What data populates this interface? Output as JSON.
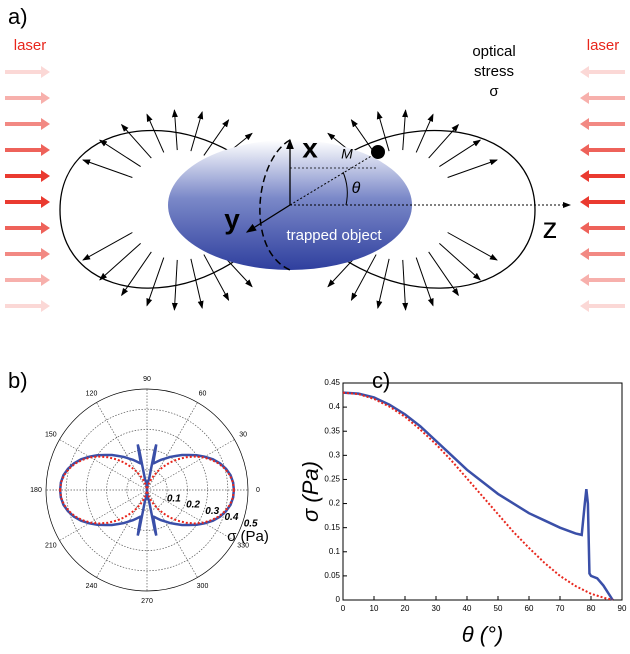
{
  "figure_a": {
    "panel_label": "a)",
    "laser_left": "laser",
    "laser_right": "laser",
    "stress_label": [
      "optical",
      "stress",
      "σ"
    ],
    "axis_x": "x",
    "axis_y": "y",
    "axis_z": "z",
    "point": "M",
    "angle": "θ",
    "object": "trapped object"
  },
  "chart_data": [
    {
      "type": "polar",
      "panel_label": "b)",
      "rlim": [
        0,
        0.5
      ],
      "rticks": [
        0.1,
        0.2,
        0.3,
        0.4,
        0.5
      ],
      "thetaticks": [
        0,
        30,
        60,
        90,
        120,
        150,
        180,
        210,
        240,
        270,
        300,
        330
      ],
      "r_label": "σ (Pa)",
      "grid": true
    },
    {
      "type": "line",
      "panel_label": "c)",
      "xlabel": "θ (°)",
      "ylabel": "σ (Pa)",
      "xlim": [
        0,
        90
      ],
      "ylim": [
        0,
        0.45
      ],
      "xticks": [
        0,
        10,
        20,
        30,
        40,
        50,
        60,
        70,
        80,
        90
      ],
      "yticks": [
        0,
        0.05,
        0.1,
        0.15,
        0.2,
        0.25,
        0.3,
        0.35,
        0.4,
        0.45
      ],
      "series": [
        {
          "color": "#3a4fa8",
          "style": "solid",
          "x": [
            0,
            5,
            10,
            15,
            20,
            25,
            30,
            35,
            40,
            45,
            50,
            55,
            60,
            65,
            70,
            75,
            77,
            78,
            78.5,
            79,
            79.5,
            80,
            82,
            84,
            86,
            87
          ],
          "values": [
            0.43,
            0.428,
            0.42,
            0.405,
            0.385,
            0.36,
            0.33,
            0.3,
            0.27,
            0.245,
            0.22,
            0.2,
            0.18,
            0.165,
            0.15,
            0.138,
            0.135,
            0.2,
            0.23,
            0.2,
            0.055,
            0.05,
            0.045,
            0.03,
            0.01,
            0
          ]
        },
        {
          "color": "#e8261c",
          "style": "dotted",
          "x": [
            0,
            5,
            10,
            15,
            20,
            25,
            30,
            35,
            40,
            45,
            50,
            55,
            60,
            65,
            70,
            75,
            80,
            85,
            87
          ],
          "values": [
            0.43,
            0.427,
            0.417,
            0.401,
            0.38,
            0.353,
            0.323,
            0.289,
            0.252,
            0.215,
            0.178,
            0.141,
            0.108,
            0.077,
            0.05,
            0.029,
            0.013,
            0.003,
            0.001
          ]
        }
      ]
    }
  ]
}
